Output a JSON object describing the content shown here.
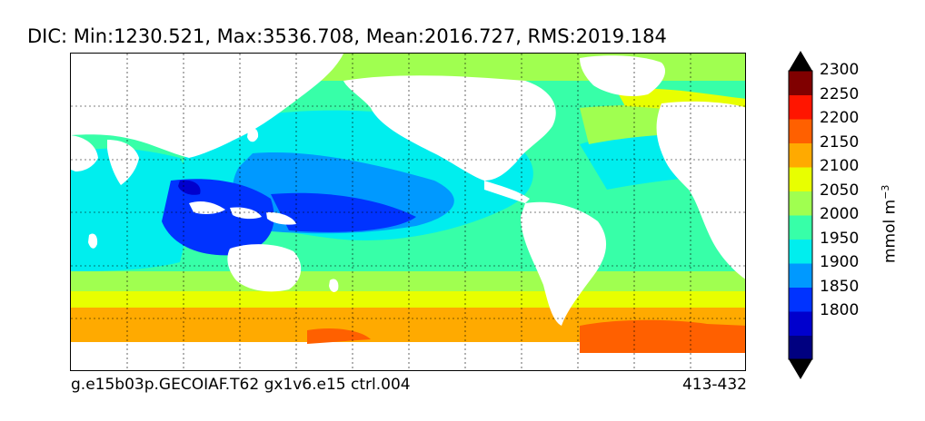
{
  "title": "DIC: Min:1230.521, Max:3536.708, Mean:2016.727, RMS:2019.184",
  "footer": {
    "case_name": "g.e15b03p.GECOIAF.T62 gx1v6.e15 ctrl.004",
    "years": "413-432"
  },
  "colorbar": {
    "units_text": "mmol m",
    "units_exponent": "−3",
    "levels": [
      {
        "label": "",
        "color": "#000080"
      },
      {
        "label": "1800",
        "color": "#0000cd"
      },
      {
        "label": "1850",
        "color": "#0033ff"
      },
      {
        "label": "1900",
        "color": "#0099ff"
      },
      {
        "label": "1950",
        "color": "#00eeee"
      },
      {
        "label": "2000",
        "color": "#37ffa8"
      },
      {
        "label": "2050",
        "color": "#a0ff50"
      },
      {
        "label": "2100",
        "color": "#e8ff00"
      },
      {
        "label": "2150",
        "color": "#ffaa00"
      },
      {
        "label": "2200",
        "color": "#ff6000"
      },
      {
        "label": "2250",
        "color": "#ff1500"
      },
      {
        "label": "2300",
        "color": "#800000"
      }
    ],
    "extend_min_color": "#000000",
    "extend_max_color": "#000000"
  },
  "colors": {
    "deep_blue": "#0033ff",
    "mid_blue": "#0099ff",
    "cyan": "#00eeee",
    "mint": "#37ffa8",
    "lime": "#a0ff50",
    "yellow": "#e8ff00",
    "orange": "#ffaa00",
    "red_orange": "#ff6000",
    "land": "#ffffff"
  }
}
